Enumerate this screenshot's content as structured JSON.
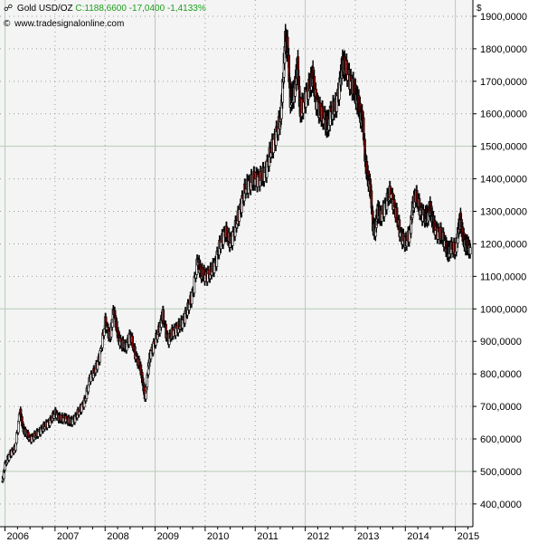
{
  "header": {
    "instrument": "Gold USD/OZ",
    "quote": "C:1188,6600 -17,0400 -1,4133%",
    "source_icon": "copyright-icon",
    "source": "www.tradesignalonline.com",
    "currency_unit": "$",
    "instrument_icon": "pin-icon"
  },
  "colors": {
    "plot_background": "#f4f4f4",
    "grid": "#b6ccb6",
    "dotted_grid": "#9a9a9a",
    "candle_up": "#ffffff",
    "candle_down": "#8b0000",
    "candle_outline": "#000000",
    "quote_text": "#1a9e1a"
  },
  "chart_data": {
    "type": "candlestick",
    "title": "Gold USD/OZ",
    "ylabel": "$",
    "xlabel": "",
    "x_range": [
      2005.9,
      2015.35
    ],
    "ylim": [
      330,
      1950
    ],
    "y_tick_labels": [
      "400,0000",
      "500,0000",
      "600,0000",
      "700,0000",
      "800,0000",
      "900,0000",
      "1000,0000",
      "1100,0000",
      "1200,0000",
      "1300,0000",
      "1400,0000",
      "1500,0000",
      "1600,0000",
      "1700,0000",
      "1800,0000",
      "1900,0000"
    ],
    "y_tick_values": [
      400,
      500,
      600,
      700,
      800,
      900,
      1000,
      1100,
      1200,
      1300,
      1400,
      1500,
      1600,
      1700,
      1800,
      1900
    ],
    "x_tick_labels": [
      "2006",
      "2007",
      "2008",
      "2009",
      "2010",
      "2011",
      "2012",
      "2013",
      "2014",
      "2015"
    ],
    "x_tick_values": [
      2006,
      2007,
      2008,
      2009,
      2010,
      2011,
      2012,
      2013,
      2014,
      2015
    ],
    "grid": true,
    "last_close": 1188.66,
    "change": -17.04,
    "change_percent": -1.4133,
    "series": [
      {
        "x": [
          2005.95,
          2006.0,
          2006.1,
          2006.2,
          2006.3,
          2006.35,
          2006.4,
          2006.5,
          2006.6,
          2006.7,
          2006.8,
          2006.9,
          2007.0,
          2007.1,
          2007.2,
          2007.3,
          2007.4,
          2007.5,
          2007.6,
          2007.7,
          2007.8,
          2007.9,
          2008.0,
          2008.1,
          2008.17,
          2008.25,
          2008.3,
          2008.4,
          2008.5,
          2008.6,
          2008.7,
          2008.75,
          2008.8,
          2008.85,
          2008.9,
          2009.0,
          2009.1,
          2009.15,
          2009.25,
          2009.35,
          2009.45,
          2009.55,
          2009.65,
          2009.75,
          2009.85,
          2009.92,
          2010.0,
          2010.1,
          2010.2,
          2010.3,
          2010.4,
          2010.5,
          2010.6,
          2010.7,
          2010.8,
          2010.9,
          2011.0,
          2011.1,
          2011.2,
          2011.3,
          2011.4,
          2011.5,
          2011.55,
          2011.6,
          2011.65,
          2011.7,
          2011.75,
          2011.8,
          2011.85,
          2011.9,
          2012.0,
          2012.1,
          2012.15,
          2012.2,
          2012.3,
          2012.4,
          2012.45,
          2012.5,
          2012.6,
          2012.7,
          2012.75,
          2012.8,
          2012.9,
          2013.0,
          2013.05,
          2013.1,
          2013.15,
          2013.2,
          2013.25,
          2013.3,
          2013.35,
          2013.4,
          2013.45,
          2013.5,
          2013.6,
          2013.7,
          2013.8,
          2013.9,
          2014.0,
          2014.1,
          2014.15,
          2014.2,
          2014.3,
          2014.4,
          2014.45,
          2014.5,
          2014.55,
          2014.6,
          2014.7,
          2014.8,
          2014.85,
          2014.9,
          2015.0,
          2015.05,
          2015.1,
          2015.15,
          2015.2,
          2015.25,
          2015.3
        ],
        "close": [
          470,
          520,
          555,
          570,
          690,
          640,
          620,
          600,
          610,
          625,
          640,
          655,
          680,
          660,
          665,
          650,
          665,
          690,
          720,
          790,
          810,
          860,
          960,
          910,
          1000,
          920,
          900,
          880,
          920,
          860,
          820,
          780,
          720,
          800,
          860,
          900,
          950,
          980,
          900,
          930,
          940,
          960,
          1000,
          1050,
          1150,
          1110,
          1100,
          1110,
          1140,
          1200,
          1240,
          1200,
          1250,
          1310,
          1370,
          1390,
          1400,
          1400,
          1420,
          1480,
          1530,
          1580,
          1680,
          1830,
          1800,
          1650,
          1650,
          1690,
          1750,
          1600,
          1650,
          1690,
          1720,
          1650,
          1600,
          1580,
          1560,
          1600,
          1620,
          1700,
          1760,
          1740,
          1700,
          1660,
          1640,
          1600,
          1580,
          1460,
          1400,
          1380,
          1260,
          1240,
          1310,
          1280,
          1320,
          1360,
          1300,
          1230,
          1200,
          1240,
          1320,
          1350,
          1300,
          1280,
          1290,
          1310,
          1270,
          1240,
          1230,
          1200,
          1170,
          1190,
          1180,
          1230,
          1280,
          1220,
          1200,
          1190,
          1188.66
        ],
        "name": ""
      }
    ]
  }
}
